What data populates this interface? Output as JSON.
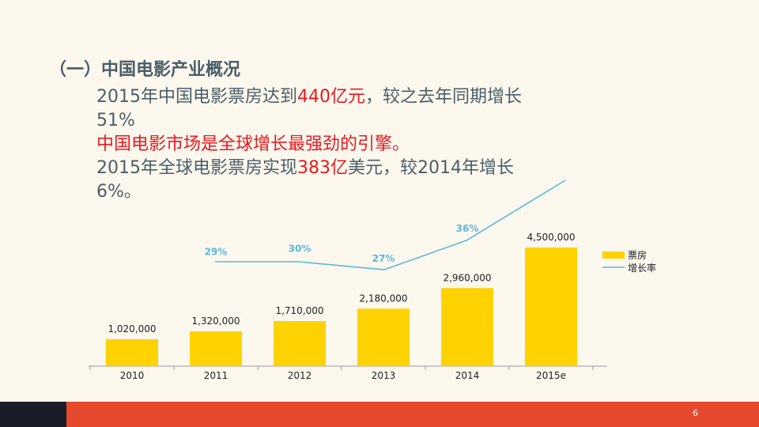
{
  "slide": {
    "heading": "（一）中国电影产业概况",
    "line1_a": "2015年中国电影票房达到",
    "line1_b": "440亿元",
    "line1_c": "，较之去年同期增长",
    "line2": "51%",
    "line3": "中国电影市场是全球增长最强劲的引擎。",
    "line4_a": "2015年全球电影票房实现",
    "line4_b": "383亿",
    "line4_c": "美元，较2014年增长",
    "line5": "6%。",
    "page_number": "6"
  },
  "colors": {
    "text": "#4a5e68",
    "highlight": "#e8191f",
    "bar": "#ffd200",
    "line": "#5bb8e0",
    "footer_dark": "#1a1c2a",
    "footer_red": "#e64a2e"
  },
  "chart_data": {
    "type": "bar",
    "categories": [
      "2010",
      "2011",
      "2012",
      "2013",
      "2014",
      "2015e"
    ],
    "series": [
      {
        "name": "票房",
        "type": "bar",
        "values": [
          1020000,
          1320000,
          1710000,
          2180000,
          2960000,
          4500000
        ],
        "labels": [
          "1,020,000",
          "1,320,000",
          "1,710,000",
          "2,180,000",
          "2,960,000",
          "4,500,000"
        ]
      },
      {
        "name": "增长率",
        "type": "line",
        "values": [
          null,
          29,
          30,
          27,
          36,
          51
        ],
        "labels": [
          "",
          "29%",
          "30%",
          "27%",
          "36%",
          ""
        ]
      }
    ],
    "legend": "right",
    "grid": false
  }
}
